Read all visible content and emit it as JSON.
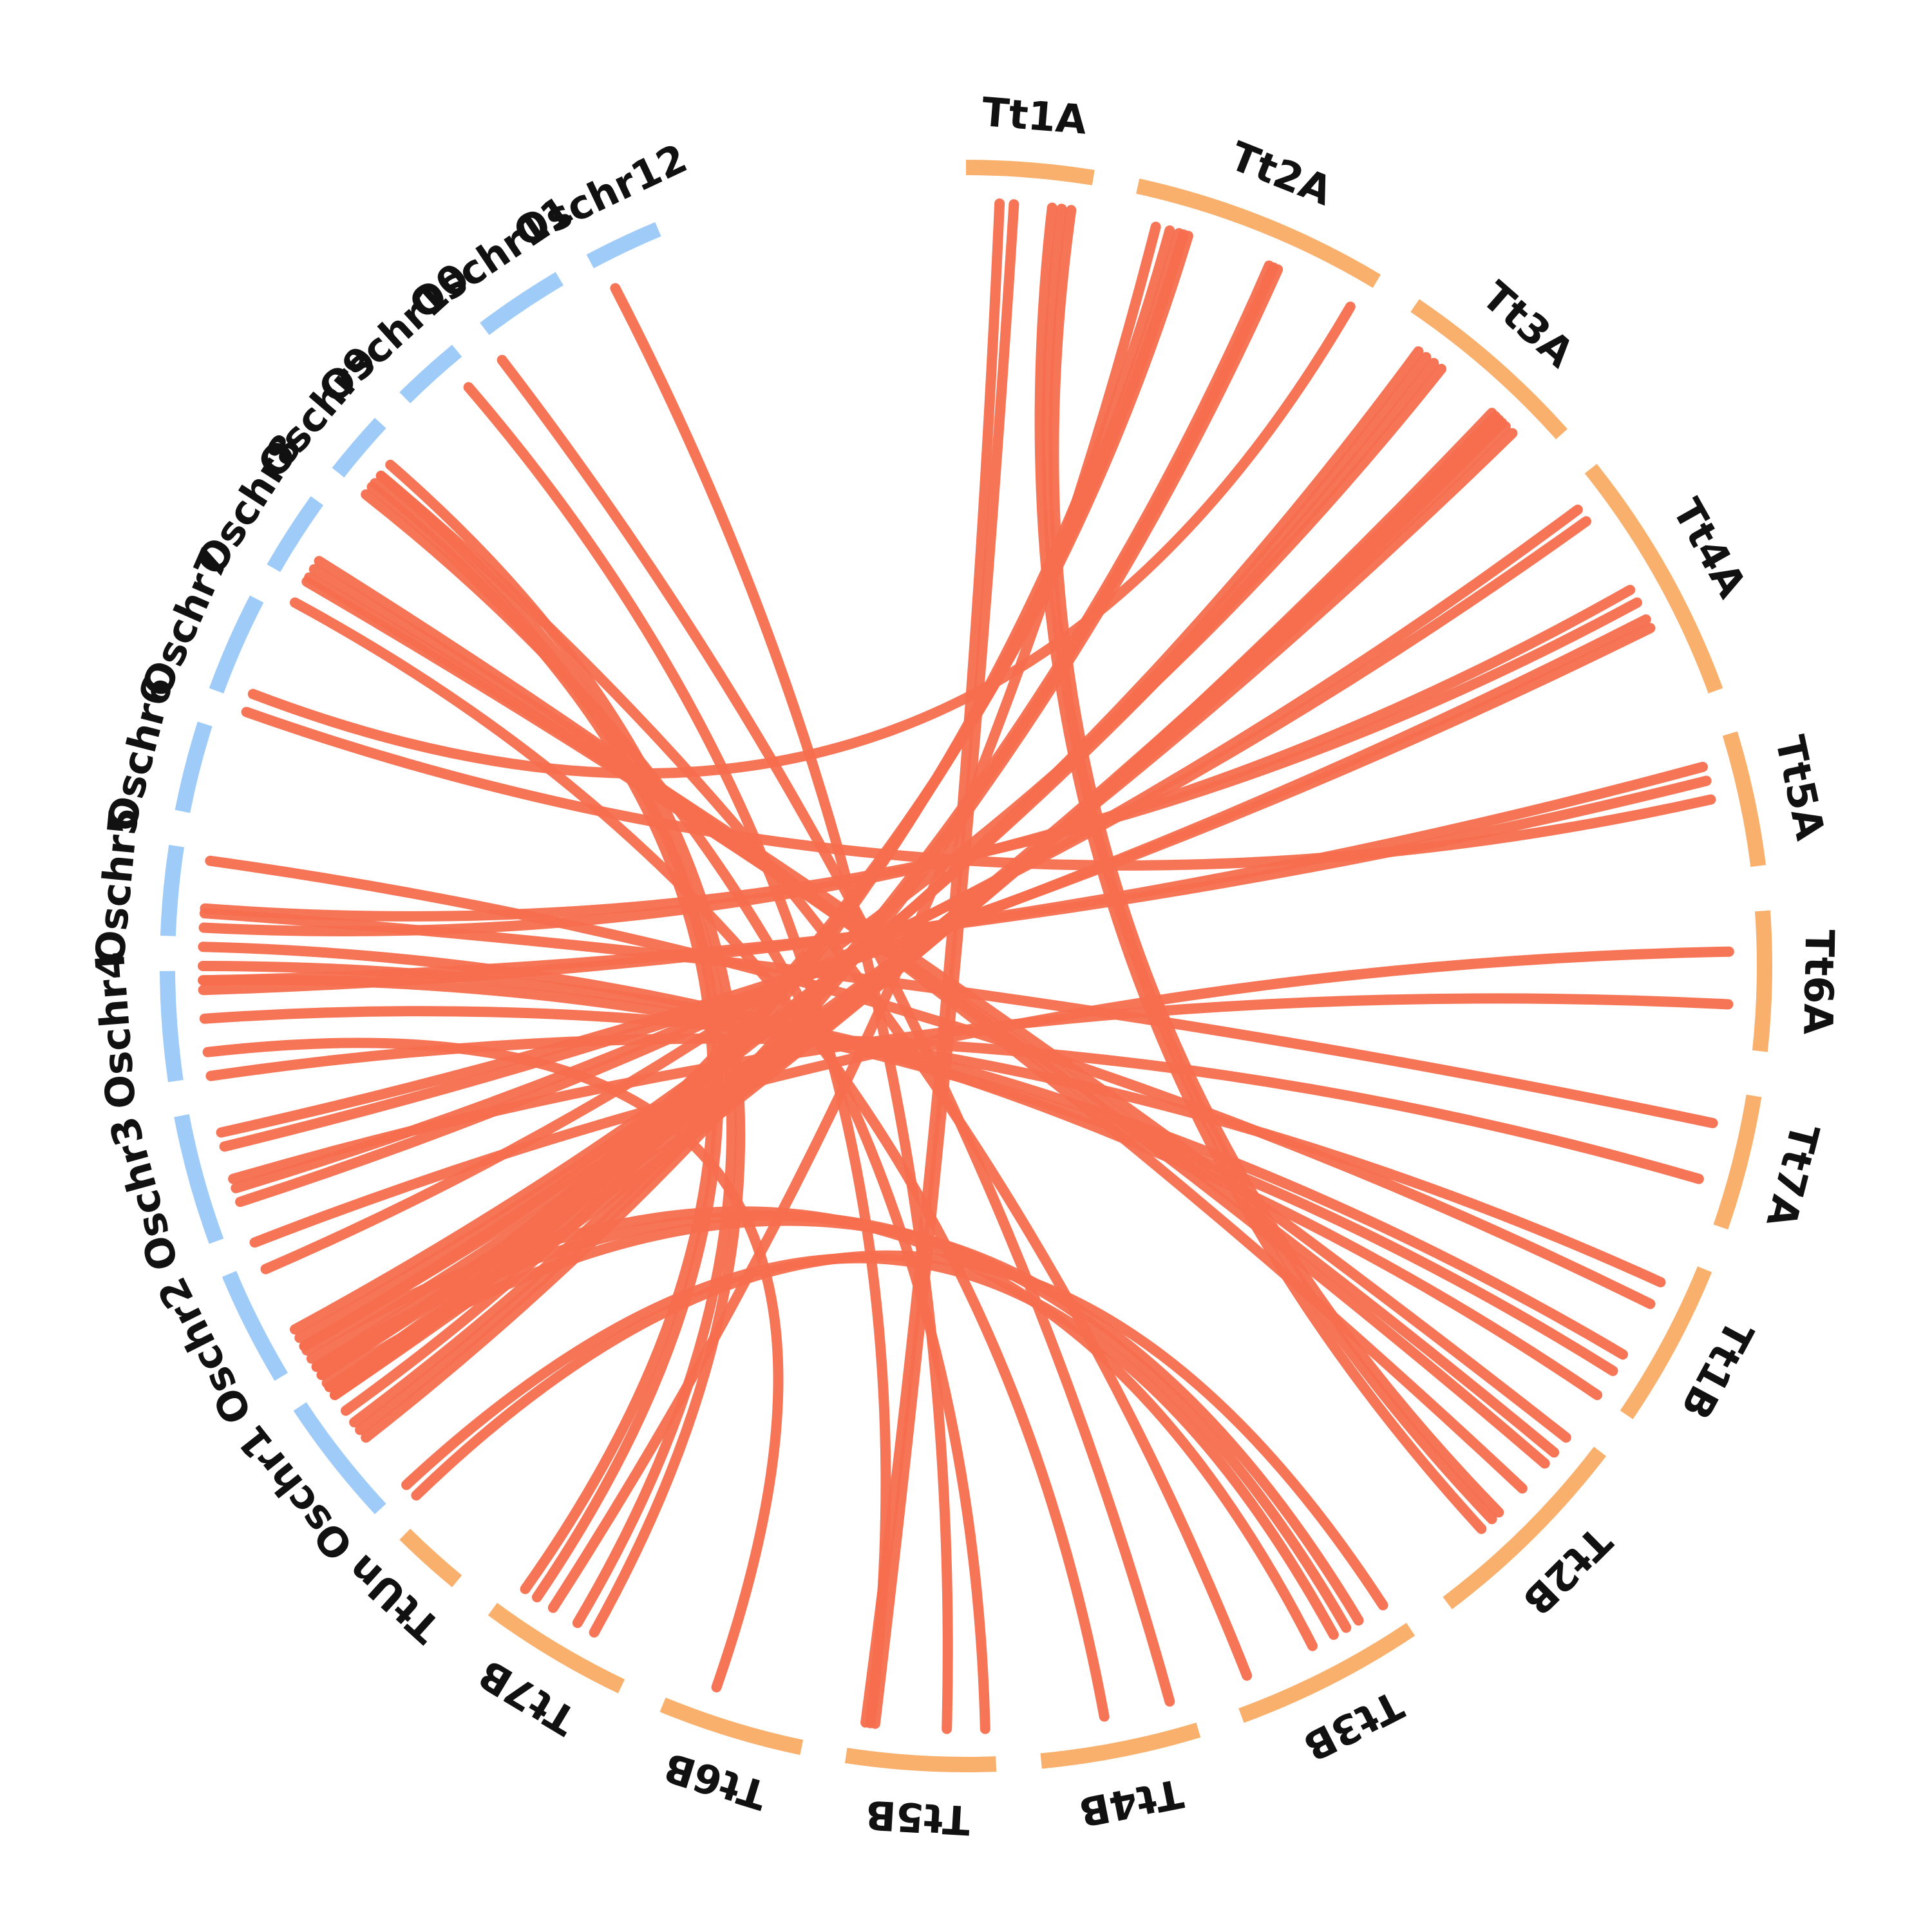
{
  "chart_data": {
    "type": "circos",
    "colors": {
      "rice": "#9ECBF7",
      "wheat": "#F9B06C",
      "link": "#F66E4E"
    },
    "chromosomes": [
      {
        "id": "Tt1A",
        "label": "Tt1A",
        "genome": "wheat",
        "start": 0.0,
        "end": 0.0255
      },
      {
        "id": "Tt2A",
        "label": "Tt2A",
        "genome": "wheat",
        "start": 0.0345,
        "end": 0.086
      },
      {
        "id": "Tt3A",
        "label": "Tt3A",
        "genome": "wheat",
        "start": 0.095,
        "end": 0.134
      },
      {
        "id": "Tt4A",
        "label": "Tt4A",
        "genome": "wheat",
        "start": 0.143,
        "end": 0.194
      },
      {
        "id": "Tt5A",
        "label": "Tt5A",
        "genome": "wheat",
        "start": 0.203,
        "end": 0.23
      },
      {
        "id": "Tt6A",
        "label": "Tt6A",
        "genome": "wheat",
        "start": 0.239,
        "end": 0.267
      },
      {
        "id": "Tt7A",
        "label": "Tt7A",
        "genome": "wheat",
        "start": 0.276,
        "end": 0.303
      },
      {
        "id": "Tt1B",
        "label": "Tt1B",
        "genome": "wheat",
        "start": 0.312,
        "end": 0.345
      },
      {
        "id": "Tt2B",
        "label": "Tt2B",
        "genome": "wheat",
        "start": 0.354,
        "end": 0.397
      },
      {
        "id": "Tt3B",
        "label": "Tt3B",
        "genome": "wheat",
        "start": 0.406,
        "end": 0.444
      },
      {
        "id": "Tt4B",
        "label": "Tt4B",
        "genome": "wheat",
        "start": 0.453,
        "end": 0.485
      },
      {
        "id": "Tt5B",
        "label": "Tt5B",
        "genome": "wheat",
        "start": 0.494,
        "end": 0.524
      },
      {
        "id": "Tt6B",
        "label": "Tt6B",
        "genome": "wheat",
        "start": 0.533,
        "end": 0.562
      },
      {
        "id": "Tt7B",
        "label": "Tt7B",
        "genome": "wheat",
        "start": 0.571,
        "end": 0.601
      },
      {
        "id": "TtUn",
        "label": "TtUn",
        "genome": "wheat",
        "start": 0.61,
        "end": 0.624
      },
      {
        "id": "Oschr1",
        "label": "Oschr1",
        "genome": "rice",
        "start": 0.631,
        "end": 0.657
      },
      {
        "id": "Oschr2",
        "label": "Oschr2",
        "genome": "rice",
        "start": 0.664,
        "end": 0.687
      },
      {
        "id": "Oschr3",
        "label": "Oschr3",
        "genome": "rice",
        "start": 0.694,
        "end": 0.72
      },
      {
        "id": "Oschr4",
        "label": "Oschr4",
        "genome": "rice",
        "start": 0.727,
        "end": 0.749
      },
      {
        "id": "Oschr5",
        "label": "Oschr5",
        "genome": "rice",
        "start": 0.756,
        "end": 0.774
      },
      {
        "id": "Oschr6",
        "label": "Oschr6",
        "genome": "rice",
        "start": 0.781,
        "end": 0.799
      },
      {
        "id": "Oschr7",
        "label": "Oschr7",
        "genome": "rice",
        "start": 0.806,
        "end": 0.826
      },
      {
        "id": "Oschr8",
        "label": "Oschr8",
        "genome": "rice",
        "start": 0.833,
        "end": 0.849
      },
      {
        "id": "Oschr9",
        "label": "Oschr9",
        "genome": "rice",
        "start": 0.856,
        "end": 0.869
      },
      {
        "id": "Oschr10",
        "label": "Oschr10",
        "genome": "rice",
        "start": 0.876,
        "end": 0.89
      },
      {
        "id": "Oschr11",
        "label": "Oschr11",
        "genome": "rice",
        "start": 0.897,
        "end": 0.915
      },
      {
        "id": "Oschr12",
        "label": "Oschr12",
        "genome": "rice",
        "start": 0.922,
        "end": 0.937
      }
    ],
    "links": [
      [
        0.007,
        0.521
      ],
      [
        0.01,
        0.519
      ],
      [
        0.018,
        0.382
      ],
      [
        0.02,
        0.379
      ],
      [
        0.022,
        0.377
      ],
      [
        0.04,
        0.591
      ],
      [
        0.043,
        0.651
      ],
      [
        0.045,
        0.655
      ],
      [
        0.046,
        0.657
      ],
      [
        0.047,
        0.66
      ],
      [
        0.065,
        0.648
      ],
      [
        0.066,
        0.646
      ],
      [
        0.067,
        0.644
      ],
      [
        0.084,
        0.808
      ],
      [
        0.101,
        0.667
      ],
      [
        0.103,
        0.669
      ],
      [
        0.105,
        0.671
      ],
      [
        0.107,
        0.685
      ],
      [
        0.121,
        0.655
      ],
      [
        0.122,
        0.662
      ],
      [
        0.123,
        0.657
      ],
      [
        0.124,
        0.66
      ],
      [
        0.125,
        0.664
      ],
      [
        0.127,
        0.667
      ],
      [
        0.148,
        0.7
      ],
      [
        0.151,
        0.703
      ],
      [
        0.168,
        0.758
      ],
      [
        0.171,
        0.762
      ],
      [
        0.175,
        0.712
      ],
      [
        0.177,
        0.715
      ],
      [
        0.208,
        0.745
      ],
      [
        0.211,
        0.747
      ],
      [
        0.215,
        0.804
      ],
      [
        0.247,
        0.691
      ],
      [
        0.258,
        0.705
      ],
      [
        0.283,
        0.761
      ],
      [
        0.295,
        0.727
      ],
      [
        0.318,
        0.739
      ],
      [
        0.323,
        0.772
      ],
      [
        0.335,
        0.75
      ],
      [
        0.339,
        0.747
      ],
      [
        0.345,
        0.754
      ],
      [
        0.356,
        0.837
      ],
      [
        0.36,
        0.834
      ],
      [
        0.363,
        0.835
      ],
      [
        0.37,
        0.839
      ],
      [
        0.408,
        0.628
      ],
      [
        0.414,
        0.658
      ],
      [
        0.417,
        0.662
      ],
      [
        0.42,
        0.631
      ],
      [
        0.425,
        0.666
      ],
      [
        0.44,
        0.861
      ],
      [
        0.457,
        0.896
      ],
      [
        0.471,
        0.829
      ],
      [
        0.496,
        0.856
      ],
      [
        0.504,
        0.924
      ],
      [
        0.52,
        0.887
      ],
      [
        0.553,
        0.732
      ],
      [
        0.581,
        0.864
      ],
      [
        0.585,
        0.859
      ],
      [
        0.595,
        0.861
      ],
      [
        0.598,
        0.858
      ]
    ]
  }
}
